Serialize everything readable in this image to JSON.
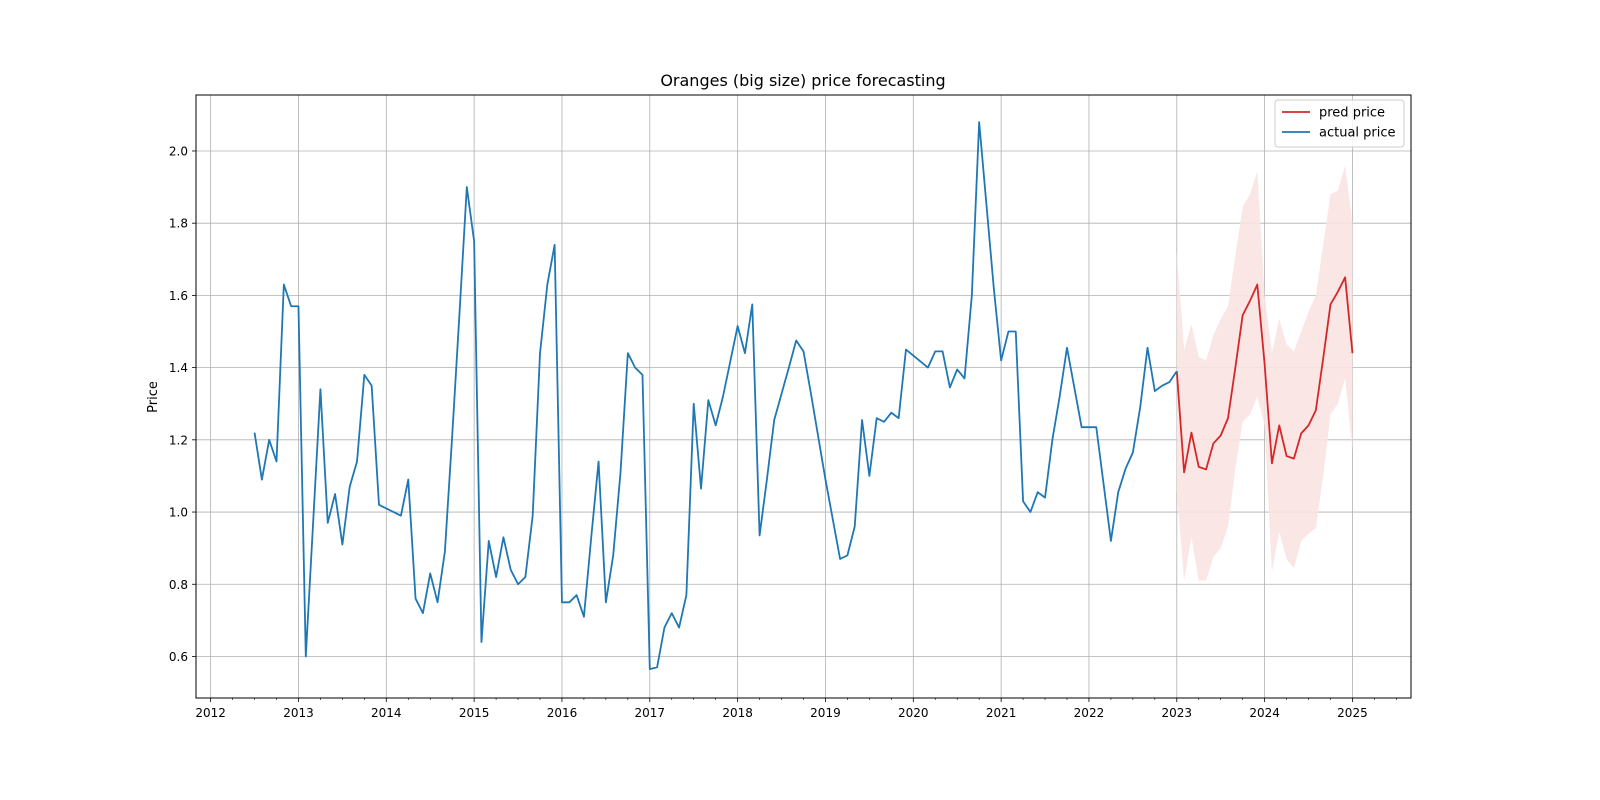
{
  "chart_data": {
    "type": "line",
    "title": "Oranges (big size) price forecasting",
    "xlabel": "",
    "ylabel": "Price",
    "x_ticks": [
      "2012",
      "2013",
      "2014",
      "2015",
      "2016",
      "2017",
      "2018",
      "2019",
      "2020",
      "2021",
      "2022",
      "2023",
      "2024",
      "2025"
    ],
    "y_ticks": [
      "0.6",
      "0.8",
      "1.0",
      "1.2",
      "1.4",
      "1.6",
      "1.8",
      "2.0"
    ],
    "xlim": [
      "2011-11",
      "2025-09"
    ],
    "ylim": [
      0.485,
      2.155
    ],
    "grid": true,
    "legend_position": "top-right",
    "colors": {
      "pred": "#d62728",
      "actual": "#1f77b4",
      "band": "#fbe3e3",
      "grid": "#b0b0b0"
    },
    "series": [
      {
        "name": "pred price",
        "points": [
          [
            "2023-01",
            1.39
          ],
          [
            "2023-02",
            1.11
          ],
          [
            "2023-03",
            1.22
          ],
          [
            "2023-04",
            1.125
          ],
          [
            "2023-05",
            1.118
          ],
          [
            "2023-06",
            1.19
          ],
          [
            "2023-07",
            1.212
          ],
          [
            "2023-08",
            1.26
          ],
          [
            "2023-09",
            1.4
          ],
          [
            "2023-10",
            1.545
          ],
          [
            "2023-11",
            1.585
          ],
          [
            "2023-12",
            1.63
          ],
          [
            "2024-01",
            1.41
          ],
          [
            "2024-02",
            1.135
          ],
          [
            "2024-03",
            1.24
          ],
          [
            "2024-04",
            1.155
          ],
          [
            "2024-05",
            1.148
          ],
          [
            "2024-06",
            1.218
          ],
          [
            "2024-07",
            1.24
          ],
          [
            "2024-08",
            1.282
          ],
          [
            "2024-09",
            1.425
          ],
          [
            "2024-10",
            1.575
          ],
          [
            "2024-11",
            1.61
          ],
          [
            "2024-12",
            1.65
          ],
          [
            "2025-01",
            1.44
          ]
        ]
      },
      {
        "name": "actual price",
        "points": [
          [
            "2012-07",
            1.22
          ],
          [
            "2012-08",
            1.09
          ],
          [
            "2012-09",
            1.2
          ],
          [
            "2012-10",
            1.14
          ],
          [
            "2012-11",
            1.63
          ],
          [
            "2012-12",
            1.57
          ],
          [
            "2013-01",
            1.57
          ],
          [
            "2013-02",
            0.6
          ],
          [
            "2013-03",
            0.97
          ],
          [
            "2013-04",
            1.34
          ],
          [
            "2013-05",
            0.97
          ],
          [
            "2013-06",
            1.05
          ],
          [
            "2013-07",
            0.91
          ],
          [
            "2013-08",
            1.07
          ],
          [
            "2013-09",
            1.14
          ],
          [
            "2013-10",
            1.38
          ],
          [
            "2013-11",
            1.35
          ],
          [
            "2013-12",
            1.02
          ],
          [
            "2014-03",
            0.99
          ],
          [
            "2014-04",
            1.09
          ],
          [
            "2014-05",
            0.76
          ],
          [
            "2014-06",
            0.72
          ],
          [
            "2014-07",
            0.83
          ],
          [
            "2014-08",
            0.75
          ],
          [
            "2014-09",
            0.89
          ],
          [
            "2014-10",
            1.21
          ],
          [
            "2014-11",
            1.55
          ],
          [
            "2014-12",
            1.9
          ],
          [
            "2015-01",
            1.75
          ],
          [
            "2015-02",
            0.64
          ],
          [
            "2015-03",
            0.92
          ],
          [
            "2015-04",
            0.82
          ],
          [
            "2015-05",
            0.93
          ],
          [
            "2015-06",
            0.84
          ],
          [
            "2015-07",
            0.8
          ],
          [
            "2015-08",
            0.82
          ],
          [
            "2015-09",
            0.99
          ],
          [
            "2015-10",
            1.44
          ],
          [
            "2015-11",
            1.63
          ],
          [
            "2015-12",
            1.74
          ],
          [
            "2016-01",
            0.75
          ],
          [
            "2016-02",
            0.75
          ],
          [
            "2016-03",
            0.77
          ],
          [
            "2016-04",
            0.71
          ],
          [
            "2016-05",
            0.93
          ],
          [
            "2016-06",
            1.14
          ],
          [
            "2016-07",
            0.75
          ],
          [
            "2016-08",
            0.88
          ],
          [
            "2016-09",
            1.11
          ],
          [
            "2016-10",
            1.44
          ],
          [
            "2016-11",
            1.4
          ],
          [
            "2016-12",
            1.38
          ],
          [
            "2017-01",
            0.565
          ],
          [
            "2017-02",
            0.57
          ],
          [
            "2017-03",
            0.68
          ],
          [
            "2017-04",
            0.72
          ],
          [
            "2017-05",
            0.68
          ],
          [
            "2017-06",
            0.77
          ],
          [
            "2017-07",
            1.3
          ],
          [
            "2017-08",
            1.065
          ],
          [
            "2017-09",
            1.31
          ],
          [
            "2017-10",
            1.24
          ],
          [
            "2017-11",
            1.32
          ],
          [
            "2018-01",
            1.515
          ],
          [
            "2018-02",
            1.44
          ],
          [
            "2018-03",
            1.575
          ],
          [
            "2018-04",
            0.935
          ],
          [
            "2018-05",
            1.09
          ],
          [
            "2018-06",
            1.255
          ],
          [
            "2018-08",
            1.4
          ],
          [
            "2018-09",
            1.475
          ],
          [
            "2018-10",
            1.445
          ],
          [
            "2018-11",
            1.33
          ],
          [
            "2019-01",
            1.09
          ],
          [
            "2019-03",
            0.87
          ],
          [
            "2019-04",
            0.88
          ],
          [
            "2019-05",
            0.96
          ],
          [
            "2019-06",
            1.255
          ],
          [
            "2019-07",
            1.1
          ],
          [
            "2019-08",
            1.26
          ],
          [
            "2019-09",
            1.25
          ],
          [
            "2019-10",
            1.275
          ],
          [
            "2019-11",
            1.26
          ],
          [
            "2019-12",
            1.45
          ],
          [
            "2020-03",
            1.4
          ],
          [
            "2020-04",
            1.445
          ],
          [
            "2020-05",
            1.445
          ],
          [
            "2020-06",
            1.345
          ],
          [
            "2020-07",
            1.395
          ],
          [
            "2020-08",
            1.37
          ],
          [
            "2020-09",
            1.6
          ],
          [
            "2020-10",
            2.08
          ],
          [
            "2020-11",
            1.85
          ],
          [
            "2020-12",
            1.62
          ],
          [
            "2021-01",
            1.42
          ],
          [
            "2021-02",
            1.5
          ],
          [
            "2021-03",
            1.5
          ],
          [
            "2021-04",
            1.03
          ],
          [
            "2021-05",
            1.0
          ],
          [
            "2021-06",
            1.055
          ],
          [
            "2021-07",
            1.04
          ],
          [
            "2021-08",
            1.2
          ],
          [
            "2021-09",
            1.32
          ],
          [
            "2021-10",
            1.455
          ],
          [
            "2021-12",
            1.235
          ],
          [
            "2022-01",
            1.235
          ],
          [
            "2022-02",
            1.235
          ],
          [
            "2022-04",
            0.92
          ],
          [
            "2022-05",
            1.055
          ],
          [
            "2022-06",
            1.12
          ],
          [
            "2022-07",
            1.165
          ],
          [
            "2022-08",
            1.29
          ],
          [
            "2022-09",
            1.455
          ],
          [
            "2022-10",
            1.335
          ],
          [
            "2022-11",
            1.35
          ],
          [
            "2022-12",
            1.36
          ],
          [
            "2023-01",
            1.39
          ]
        ]
      }
    ],
    "confidence_band": {
      "x": [
        "2023-01",
        "2023-02",
        "2023-03",
        "2023-04",
        "2023-05",
        "2023-06",
        "2023-07",
        "2023-08",
        "2023-09",
        "2023-10",
        "2023-11",
        "2023-12",
        "2024-01",
        "2024-02",
        "2024-03",
        "2024-04",
        "2024-05",
        "2024-06",
        "2024-07",
        "2024-08",
        "2024-09",
        "2024-10",
        "2024-11",
        "2024-12",
        "2025-01"
      ],
      "upper": [
        1.72,
        1.45,
        1.52,
        1.43,
        1.42,
        1.49,
        1.535,
        1.57,
        1.71,
        1.845,
        1.88,
        1.945,
        1.6,
        1.44,
        1.535,
        1.465,
        1.445,
        1.5,
        1.555,
        1.6,
        1.74,
        1.88,
        1.89,
        1.96,
        1.8
      ],
      "lower": [
        1.06,
        0.81,
        0.93,
        0.81,
        0.81,
        0.875,
        0.9,
        0.96,
        1.12,
        1.25,
        1.27,
        1.32,
        1.24,
        0.835,
        0.945,
        0.87,
        0.845,
        0.92,
        0.94,
        0.955,
        1.1,
        1.27,
        1.3,
        1.37,
        1.17
      ]
    }
  }
}
